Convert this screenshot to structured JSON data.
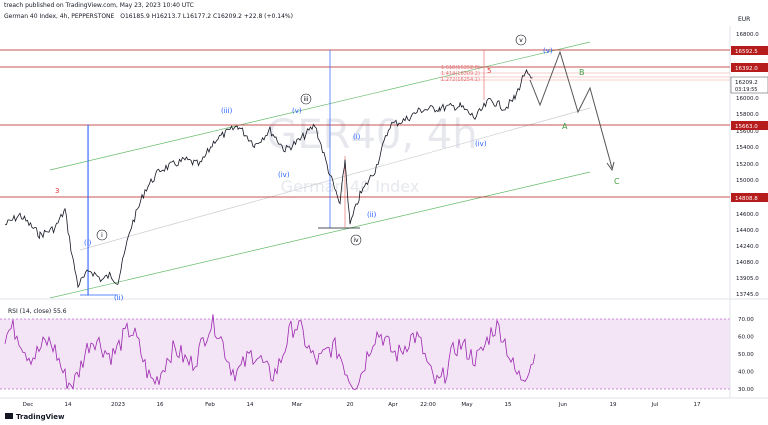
{
  "header": {
    "published_by": "treach published on TradingView.com, May 23, 2023 10:40 UTC",
    "symbol": "German 40 Index, 4h, PEPPERSTONE",
    "ohlc": "O16185.9  H16213.7  L16177.2  C16209.2  +22.8 (+0.14%)",
    "currency": "EUR"
  },
  "watermark": {
    "big": "GER40, 4h",
    "small": "German 40 Index"
  },
  "footer": {
    "brand": "TradingView"
  },
  "colors": {
    "candle": "#131722",
    "level": "#b71c1c",
    "channel": "#66bb6a",
    "wave_blue": "#2962ff",
    "rsi_line": "#9c27b0",
    "rsi_band": "#f3e5f5"
  },
  "chart_data": {
    "type": "line",
    "price_axis": {
      "ticks": [
        "16800.0",
        "16600.0",
        "16400.0",
        "16200.0",
        "16000.0",
        "15800.0",
        "15600.0",
        "15400.0",
        "15200.0",
        "15000.0",
        "14800.0",
        "14600.0",
        "14400.0",
        "14240.0",
        "14080.0",
        "13905.0",
        "13745.0"
      ],
      "level_labels": [
        "16592.5",
        "16392.0",
        "15663.0",
        "14808.8"
      ],
      "last_price": "16209.2",
      "countdown": "03:19:55"
    },
    "time_axis": [
      "Dec",
      "14",
      "2023",
      "16",
      "Feb",
      "14",
      "Mar",
      "20",
      "Apr",
      "22:00",
      "May",
      "15",
      "Jun",
      "19",
      "Jul",
      "17"
    ],
    "wave_labels": {
      "red_3": "3",
      "red_5": "5",
      "circ_i_low": "i",
      "circ_iii": "iii",
      "circ_iv": "iv",
      "circ_v": "v",
      "blue_i_start": "(i)",
      "blue_ii_start": "(ii)",
      "blue_iii": "(iii)",
      "blue_iv_left": "(iv)",
      "blue_v_left": "(v)",
      "blue_i_mid": "(i)",
      "blue_ii_mid": "(ii)",
      "blue_iv_right": "(iv)",
      "blue_v_right": "(v)",
      "green_a": "A",
      "green_b": "B",
      "green_c": "C"
    },
    "fib_labels": [
      "1.618(16392.0)",
      "1.414(16309.2)",
      "1.272(16254.1)"
    ],
    "rsi": {
      "label": "RSI (14, close)  55.6",
      "ticks": [
        "70.00",
        "60.00",
        "50.00",
        "40.00",
        "30.00"
      ],
      "value": 55.6,
      "band": [
        30,
        70
      ]
    }
  }
}
